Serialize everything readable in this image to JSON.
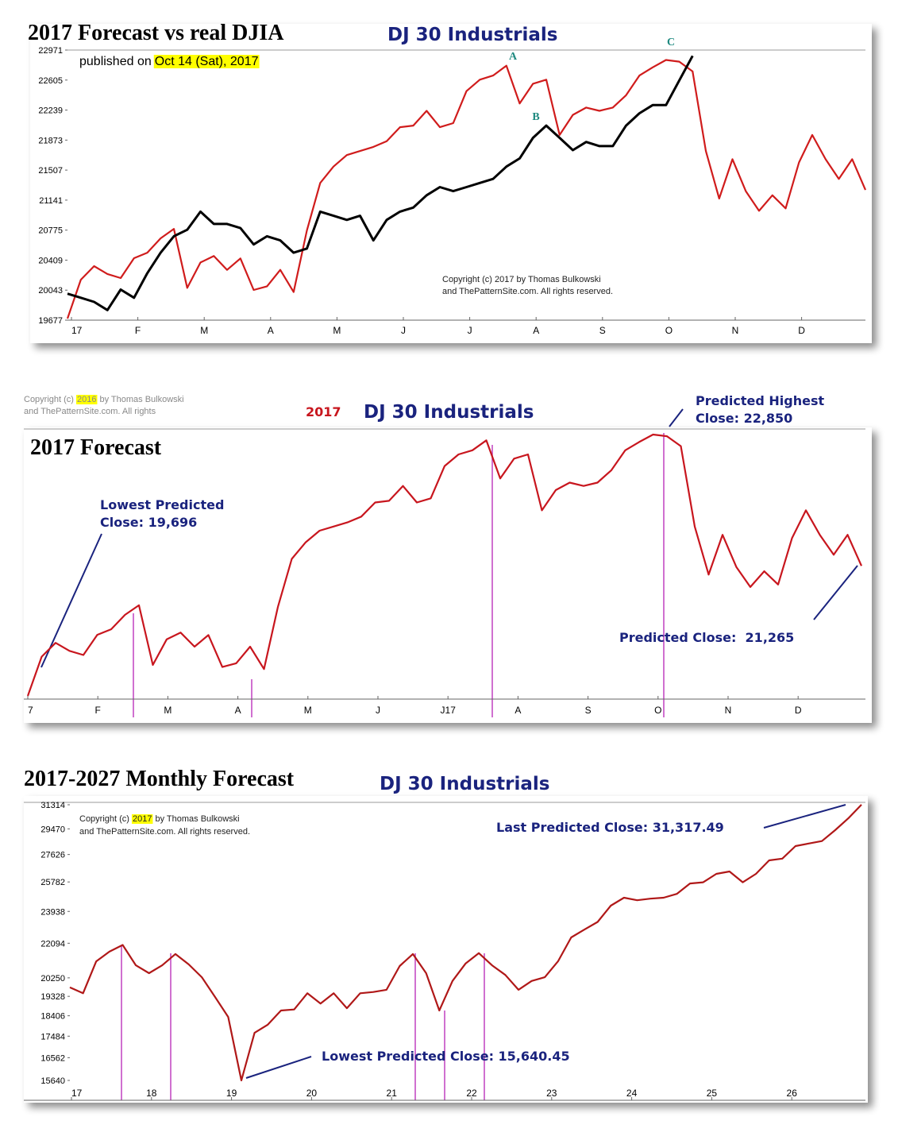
{
  "chart_data": [
    {
      "type": "line",
      "title": "2017 Forecast vs real DJIA",
      "subtitle": "DJ 30 Industrials",
      "published_label": "published on",
      "published_date": "Oct 14 (Sat), 2017",
      "copyright": [
        "Copyright (c) 2017 by Thomas Bulkowski",
        "and ThePatternSite.com. All rights reserved."
      ],
      "annotations": [
        "A",
        "B",
        "C"
      ],
      "ylim": [
        19677,
        22971
      ],
      "yticks": [
        19677,
        20043,
        20409,
        20775,
        21141,
        21507,
        21873,
        22239,
        22605,
        22971
      ],
      "x_labels": [
        "17",
        "F",
        "M",
        "A",
        "M",
        "J",
        "J",
        "A",
        "S",
        "O",
        "N",
        "D"
      ],
      "series": [
        {
          "color": "#d01c1c",
          "values": [
            19696,
            20170,
            20336,
            20240,
            20190,
            20433,
            20500,
            20675,
            20790,
            20070,
            20380,
            20460,
            20290,
            20430,
            20045,
            20090,
            20290,
            20020,
            20770,
            21350,
            21550,
            21690,
            21740,
            21790,
            21860,
            22030,
            22050,
            22230,
            22030,
            22080,
            22470,
            22610,
            22660,
            22780,
            22320,
            22560,
            22610,
            21935,
            22180,
            22270,
            22230,
            22270,
            22420,
            22660,
            22760,
            22850,
            22830,
            22710,
            21740,
            21160,
            21640,
            21250,
            21010,
            21200,
            21040,
            21600,
            21935,
            21640,
            21400,
            21640,
            21265
          ]
        },
        {
          "color": "#000000",
          "values": [
            20000,
            19950,
            19900,
            19800,
            20050,
            19950,
            20250,
            20500,
            20700,
            20780,
            21000,
            20850,
            20850,
            20800,
            20600,
            20700,
            20650,
            20500,
            20550,
            21000,
            20950,
            20900,
            20950,
            20650,
            20900,
            21000,
            21050,
            21200,
            21300,
            21250,
            21300,
            21350,
            21400,
            21550,
            21650,
            21900,
            22050,
            21900,
            21750,
            21850,
            21800,
            21800,
            22050,
            22200,
            22300,
            22300,
            22600,
            22900,
            null,
            null,
            null,
            null,
            null,
            null,
            null,
            null,
            null,
            null,
            null,
            null,
            null
          ]
        }
      ]
    },
    {
      "type": "line",
      "year_label": "2017",
      "subtitle": "DJ 30 Industrials",
      "title": "2017 Forecast",
      "copyright": {
        "before": "Copyright (c)",
        "year": "2016",
        "after": "by Thomas Bulkowski",
        "line2": "and ThePatternSite.com. All rights"
      },
      "annotations": [
        [
          "Lowest Predicted",
          "Close: 19,696"
        ],
        [
          "Predicted Highest",
          "Close: 22,850"
        ],
        [
          "Predicted Close:  21,265"
        ]
      ],
      "x_labels": [
        "7",
        "F",
        "M",
        "A",
        "M",
        "J",
        "J17",
        "A",
        "S",
        "O",
        "N",
        "D"
      ],
      "series": [
        {
          "color": "#c8161e",
          "values": [
            19696,
            20170,
            20336,
            20240,
            20190,
            20433,
            20500,
            20675,
            20790,
            20070,
            20380,
            20460,
            20290,
            20430,
            20045,
            20090,
            20290,
            20020,
            20770,
            21350,
            21550,
            21690,
            21740,
            21790,
            21860,
            22030,
            22050,
            22230,
            22030,
            22080,
            22470,
            22610,
            22660,
            22780,
            22320,
            22560,
            22610,
            21935,
            22180,
            22270,
            22230,
            22270,
            22420,
            22660,
            22760,
            22850,
            22830,
            22710,
            21740,
            21160,
            21640,
            21250,
            21010,
            21200,
            21040,
            21600,
            21935,
            21640,
            21400,
            21640,
            21265
          ]
        }
      ]
    },
    {
      "type": "line",
      "title": "2017-2027 Monthly Forecast",
      "subtitle": "DJ 30 Industrials",
      "copyright": {
        "before": "Copyright (c)",
        "year": "2017",
        "after": "by Thomas Bulkowski",
        "line2": "and ThePatternSite.com. All rights reserved."
      },
      "annotations": [
        "Lowest Predicted Close: 15,640.45",
        "Last Predicted Close: 31,317.49"
      ],
      "log_scale": true,
      "ylim": [
        15640,
        31314
      ],
      "yticks": [
        15640,
        16562,
        17484,
        18406,
        19328,
        20250,
        22094,
        23938,
        25782,
        27626,
        29470,
        31314
      ],
      "x_labels": [
        "17",
        "18",
        "19",
        "20",
        "21",
        "22",
        "23",
        "24",
        "25",
        "26"
      ],
      "series": [
        {
          "color": "#b01818",
          "values": [
            19770,
            19480,
            21110,
            21630,
            22000,
            20900,
            20490,
            20900,
            21500,
            20950,
            20280,
            19300,
            18350,
            15640.45,
            17630,
            18000,
            18650,
            18700,
            19480,
            18980,
            19480,
            18760,
            19480,
            19540,
            19650,
            20860,
            21500,
            20490,
            18650,
            20090,
            21000,
            21550,
            20900,
            20400,
            19650,
            20090,
            20280,
            21110,
            22420,
            22870,
            23310,
            24290,
            24780,
            24620,
            24720,
            24780,
            25020,
            25680,
            25760,
            26310,
            26470,
            25760,
            26310,
            27220,
            27340,
            28220,
            28400,
            28580,
            29370,
            30260,
            31317.49
          ]
        }
      ]
    }
  ]
}
